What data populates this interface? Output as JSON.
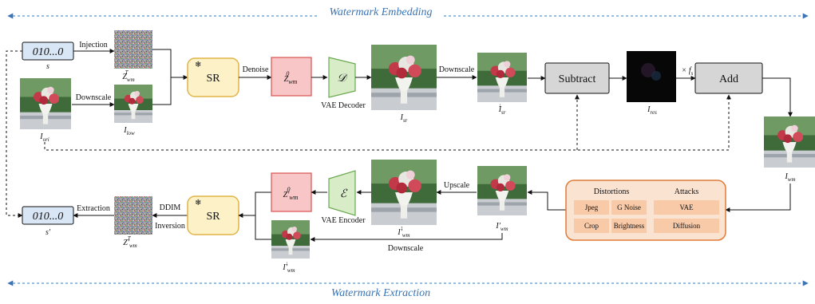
{
  "banners": {
    "embedding": "Watermark Embedding",
    "extraction": "Watermark Extraction"
  },
  "top": {
    "s_box": "010...0",
    "s_label": "s",
    "injection": "Injection",
    "zT_label": "Z",
    "downscale_left": "Downscale",
    "i_ori": "I",
    "i_low": "I",
    "sr": "SR",
    "denoise": "Denoise",
    "z0_label": "Z",
    "vae_decoder_symbol": "𝒟",
    "vae_decoder": "VAE Decoder",
    "i_sr": "I",
    "downscale_mid": "Downscale",
    "i_sr_down": "I",
    "subtract": "Subtract",
    "i_res": "I",
    "fs": "× f",
    "add": "Add",
    "i_wm": "I"
  },
  "bottom": {
    "s_box": "010...0",
    "s_label": "s′",
    "extraction": "Extraction",
    "zT_label": "Z′",
    "ddim": "DDIM",
    "inversion": "Inversion",
    "sr": "SR",
    "z0_label": "Z′",
    "vae_encoder_symbol": "ℰ",
    "vae_encoder": "VAE Encoder",
    "i_wm_up": "I′",
    "upscale": "Upscale",
    "i_wm_prime": "I′",
    "downscale": "Downscale",
    "i_wm_down": "I′"
  },
  "distortions": {
    "header_left": "Distortions",
    "header_right": "Attacks",
    "items": [
      "Jpeg",
      "G Noise",
      "Crop",
      "Brightness",
      "VAE",
      "Diffusion"
    ]
  },
  "colors": {
    "blue": "#3a74b4",
    "sr_fill": "#fdf1c8",
    "sr_stroke": "#e0b449",
    "z_fill": "#f8c6c6",
    "z_stroke": "#d9534f",
    "vae_fill": "#d8ecc8",
    "vae_stroke": "#6aa84f",
    "gray_box": "#d6d6d6",
    "dist_fill": "#fbe3d2",
    "dist_stroke": "#e07b39",
    "dist_item": "#f8caa8"
  }
}
